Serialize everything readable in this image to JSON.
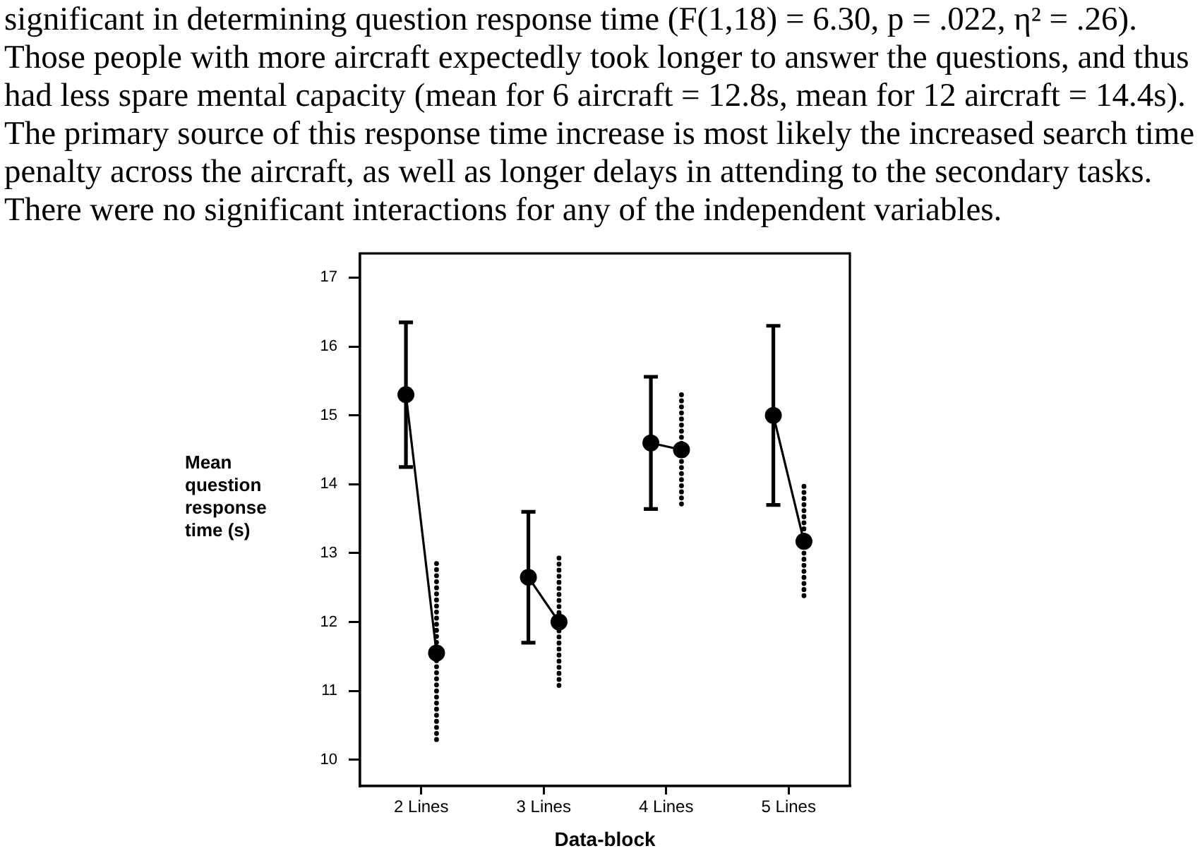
{
  "chart_data": {
    "type": "scatter",
    "annotations": [
      "significant in determining question response time (F(1,18) = 6.30, p = .022, η² = .26).",
      "Those people with more aircraft expectedly took longer to answer the questions, and thus",
      "had less spare mental capacity (mean for 6 aircraft = 12.8s, mean for 12 aircraft = 14.4s).",
      "The primary source of this response time increase is most likely the increased search time",
      "penalty across the aircraft, as well as longer delays in attending to the secondary tasks.",
      "There were no significant interactions for any of the independent variables."
    ],
    "xlabel": "Data-block",
    "ylabel": "Mean question response time (s)",
    "series": [
      {
        "color": "#000000",
        "x": [
          1.875,
          2.875,
          3.875,
          4.875
        ],
        "values": [
          15.3,
          12.65,
          14.6,
          15.0
        ],
        "errors": [
          1.05,
          0.95,
          0.96,
          1.3
        ],
        "line_style": "solid"
      },
      {
        "color": "#000000",
        "x": [
          2.125,
          3.125,
          4.125,
          5.125
        ],
        "values": [
          11.55,
          12.0,
          14.5,
          13.17
        ],
        "errors": [
          1.3,
          0.93,
          0.8,
          0.8
        ],
        "line_style": "dotted"
      },
      {
        "type": "line",
        "color": "#000000",
        "x": [
          1.875,
          2.125
        ],
        "values": [
          15.3,
          11.55
        ],
        "marker": "none"
      },
      {
        "type": "line",
        "color": "#000000",
        "x": [
          2.875,
          3.125
        ],
        "values": [
          12.65,
          12.0
        ],
        "marker": "none"
      },
      {
        "type": "line",
        "color": "#000000",
        "x": [
          3.875,
          4.125
        ],
        "values": [
          14.6,
          14.5
        ],
        "marker": "none"
      },
      {
        "type": "line",
        "color": "#000000",
        "x": [
          4.875,
          5.125
        ],
        "values": [
          15.0,
          13.17
        ],
        "marker": "none"
      }
    ],
    "xlim": [
      1.5,
      5.5
    ],
    "xticks": [
      {
        "value": 2,
        "label": "2 Lines"
      },
      {
        "value": 3,
        "label": "3 Lines"
      },
      {
        "value": 4,
        "label": "4 Lines"
      },
      {
        "value": 5,
        "label": "5 Lines"
      }
    ],
    "ylim": [
      9.62,
      17.35
    ],
    "yticks": [
      10,
      11,
      12,
      13,
      14,
      15,
      16,
      17
    ],
    "marker": "circle",
    "grid": false,
    "legend": false
  }
}
